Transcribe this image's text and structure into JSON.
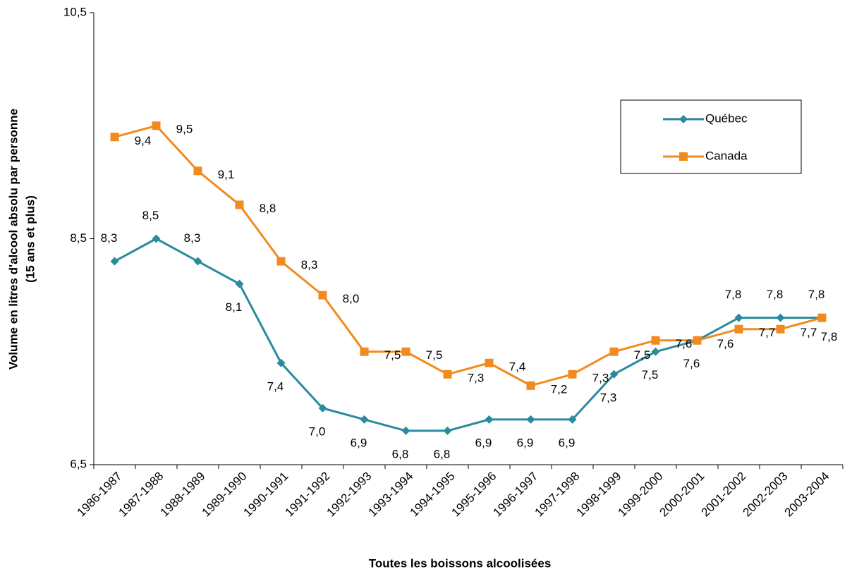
{
  "chart_data": {
    "type": "line",
    "xlabel": "Toutes les boissons  alcoolisées",
    "ylabel": [
      "Volume en litres d'alcool absolu par personne",
      "(15 ans et plus)"
    ],
    "categories": [
      "1986-1987",
      "1987-1988",
      "1988-1989",
      "1989-1990",
      "1990-1991",
      "1991-1992",
      "1992-1993",
      "1993-1994",
      "1994-1995",
      "1995-1996",
      "1996-1997",
      "1997-1998",
      "1998-1999",
      "1999-2000",
      "2000-2001",
      "2001-2002",
      "2002-2003",
      "2003-2004"
    ],
    "series": [
      {
        "name": "Québec",
        "color": "#2A8A9E",
        "marker": "diamond",
        "values": [
          8.3,
          8.5,
          8.3,
          8.1,
          7.4,
          7.0,
          6.9,
          6.8,
          6.8,
          6.9,
          6.9,
          6.9,
          7.3,
          7.5,
          7.6,
          7.8,
          7.8,
          7.8
        ],
        "value_labels": [
          "8,3",
          "8,5",
          "8,3",
          "8,1",
          "7,4",
          "7,0",
          "6,9",
          "6,8",
          "6,8",
          "6,9",
          "6,9",
          "6,9",
          "7,3",
          "7,5",
          "7,6",
          "7,8",
          "7,8",
          "7,8"
        ]
      },
      {
        "name": "Canada",
        "color": "#F28A1E",
        "marker": "square",
        "values": [
          9.4,
          9.5,
          9.1,
          8.8,
          8.3,
          8.0,
          7.5,
          7.5,
          7.3,
          7.4,
          7.2,
          7.3,
          7.5,
          7.6,
          7.6,
          7.7,
          7.7,
          7.8
        ],
        "value_labels": [
          "9,4",
          "9,5",
          "9,1",
          "8,8",
          "8,3",
          "8,0",
          "7,5",
          "7,5",
          "7,3",
          "7,4",
          "7,2",
          "7,3",
          "7,5",
          "7,6",
          "7,6",
          "7,7",
          "7,7",
          "7,8"
        ]
      }
    ],
    "ylim": [
      6.5,
      10.5
    ],
    "yticks": [
      {
        "value": 6.5,
        "label": "6,5"
      },
      {
        "value": 8.5,
        "label": "8,5"
      },
      {
        "value": 10.5,
        "label": "10,5"
      }
    ],
    "grid": false,
    "legend": "upper right"
  }
}
